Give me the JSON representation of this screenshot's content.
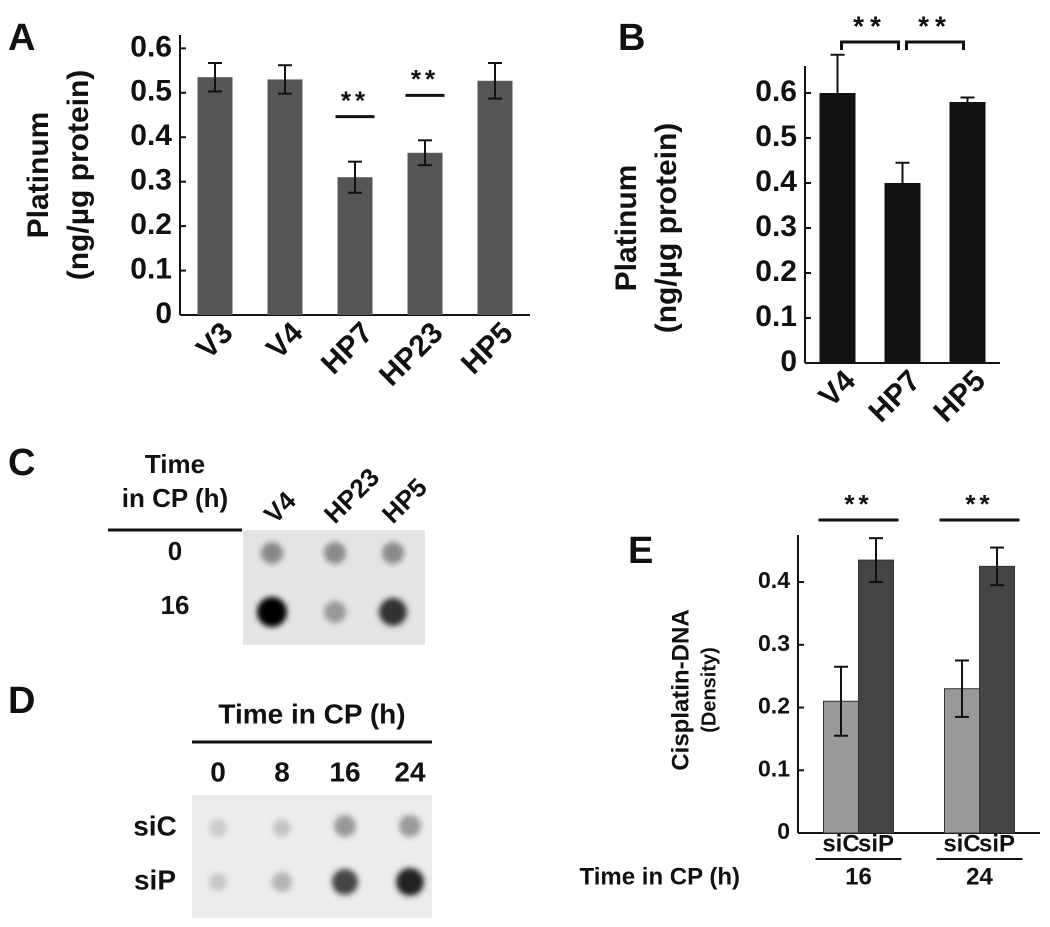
{
  "chart_data": [
    {
      "panel": "A",
      "type": "bar",
      "ylabel": [
        "Platinum",
        "(ng/µg protein)"
      ],
      "categories": [
        "V3",
        "V4",
        "HP7",
        "HP23",
        "HP5"
      ],
      "values": [
        0.535,
        0.53,
        0.31,
        0.365,
        0.527
      ],
      "errors": [
        0.032,
        0.032,
        0.035,
        0.028,
        0.04
      ],
      "color": "#555555",
      "ylim": [
        0,
        0.63
      ],
      "yticks": [
        0,
        0.1,
        0.2,
        0.3,
        0.4,
        0.5,
        0.6
      ],
      "annotations": [
        {
          "text": "**",
          "category": "HP7"
        },
        {
          "text": "**",
          "category": "HP23"
        }
      ]
    },
    {
      "panel": "B",
      "type": "bar",
      "ylabel": [
        "Platinum",
        "(ng/µg protein)"
      ],
      "categories": [
        "V4",
        "HP7",
        "HP5"
      ],
      "values": [
        0.6,
        0.4,
        0.58
      ],
      "errors": [
        0.085,
        0.045,
        0.01
      ],
      "color": "#111111",
      "ylim": [
        0,
        0.66
      ],
      "yticks": [
        0,
        0.1,
        0.2,
        0.3,
        0.4,
        0.5,
        0.6
      ],
      "annotations": [
        {
          "text": "**",
          "between": [
            "V4",
            "HP7"
          ]
        },
        {
          "text": "**",
          "between": [
            "HP7",
            "HP5"
          ]
        }
      ]
    },
    {
      "panel": "E",
      "type": "grouped-bar",
      "ylabel": [
        "Cisplatin-DNA",
        "(Density)"
      ],
      "xlabel": "Time in CP (h)",
      "categories": [
        "16",
        "24"
      ],
      "series": [
        {
          "name": "siC",
          "color": "#999999",
          "values": [
            0.21,
            0.23
          ],
          "errors": [
            0.055,
            0.045
          ]
        },
        {
          "name": "siP",
          "color": "#444444",
          "values": [
            0.435,
            0.425
          ],
          "errors": [
            0.035,
            0.03
          ]
        }
      ],
      "ylim": [
        0,
        0.475
      ],
      "yticks": [
        0,
        0.1,
        0.2,
        0.3,
        0.4
      ],
      "annotations": [
        {
          "text": "**",
          "category": "16"
        },
        {
          "text": "**",
          "category": "24"
        }
      ]
    }
  ],
  "blots": [
    {
      "panel": "C",
      "header": [
        "Time",
        "in CP (h)"
      ],
      "columns": [
        "V4",
        "HP23",
        "HP5"
      ],
      "rows": [
        "0",
        "16"
      ]
    },
    {
      "panel": "D",
      "header": [
        "Time in CP (h)"
      ],
      "columns": [
        "0",
        "8",
        "16",
        "24"
      ],
      "rows": [
        "siC",
        "siP"
      ]
    }
  ]
}
